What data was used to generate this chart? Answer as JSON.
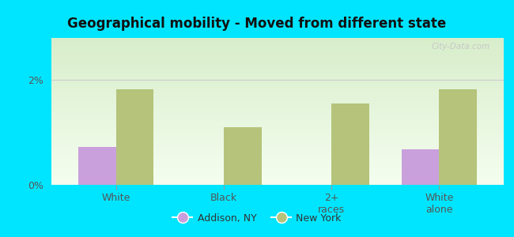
{
  "title": "Geographical mobility - Moved from different state",
  "categories": [
    "White",
    "Black",
    "2+\nraces",
    "White\nalone"
  ],
  "addison_values": [
    0.73,
    0.0,
    0.0,
    0.68
  ],
  "newyork_values": [
    1.82,
    1.1,
    1.55,
    1.82
  ],
  "addison_color": "#c9a0dc",
  "newyork_color": "#b5c47a",
  "ylim": [
    0,
    2.8
  ],
  "yticks": [
    0,
    2
  ],
  "ytick_labels": [
    "0%",
    "2%"
  ],
  "grad_top": "#d8eecb",
  "grad_bottom": "#f5fef0",
  "outer_bg": "#00e5ff",
  "legend_labels": [
    "Addison, NY",
    "New York"
  ],
  "bar_width": 0.35,
  "watermark": "City-Data.com"
}
